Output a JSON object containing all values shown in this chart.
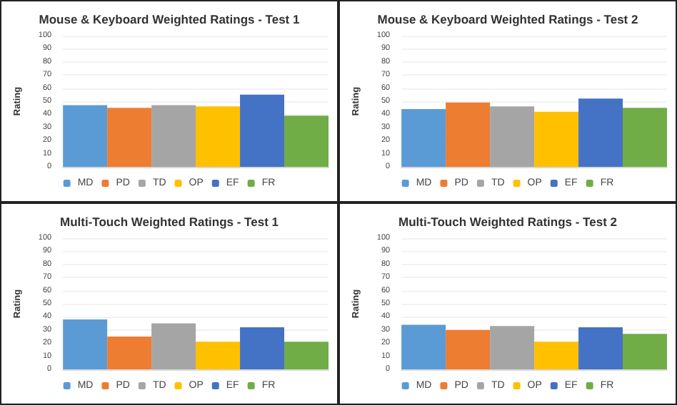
{
  "chart_data": [
    {
      "type": "bar",
      "title": "Mouse & Keyboard Weighted Ratings - Test 1",
      "ylabel": "Rating",
      "categories": [
        null
      ],
      "ylim": [
        0,
        100
      ],
      "yticks": [
        0,
        10,
        20,
        30,
        40,
        50,
        60,
        70,
        80,
        90,
        100
      ],
      "grid": "y",
      "legend": "bottom",
      "series": [
        {
          "name": "MD",
          "color": "#5b9bd5",
          "values": [
            47
          ]
        },
        {
          "name": "PD",
          "color": "#ed7d31",
          "values": [
            45
          ]
        },
        {
          "name": "TD",
          "color": "#a5a5a5",
          "values": [
            47
          ]
        },
        {
          "name": "OP",
          "color": "#ffc000",
          "values": [
            46
          ]
        },
        {
          "name": "EF",
          "color": "#4472c4",
          "values": [
            55
          ]
        },
        {
          "name": "FR",
          "color": "#70ad47",
          "values": [
            39
          ]
        }
      ]
    },
    {
      "type": "bar",
      "title": "Mouse & Keyboard Weighted Ratings - Test 2",
      "ylabel": "Rating",
      "categories": [
        null
      ],
      "ylim": [
        0,
        100
      ],
      "yticks": [
        0,
        10,
        20,
        30,
        40,
        50,
        60,
        70,
        80,
        90,
        100
      ],
      "grid": "y",
      "legend": "bottom",
      "series": [
        {
          "name": "MD",
          "color": "#5b9bd5",
          "values": [
            44
          ]
        },
        {
          "name": "PD",
          "color": "#ed7d31",
          "values": [
            49
          ]
        },
        {
          "name": "TD",
          "color": "#a5a5a5",
          "values": [
            46
          ]
        },
        {
          "name": "OP",
          "color": "#ffc000",
          "values": [
            42
          ]
        },
        {
          "name": "EF",
          "color": "#4472c4",
          "values": [
            52
          ]
        },
        {
          "name": "FR",
          "color": "#70ad47",
          "values": [
            45
          ]
        }
      ]
    },
    {
      "type": "bar",
      "title": "Multi-Touch Weighted Ratings - Test 1",
      "ylabel": "Rating",
      "categories": [
        null
      ],
      "ylim": [
        0,
        100
      ],
      "yticks": [
        0,
        10,
        20,
        30,
        40,
        50,
        60,
        70,
        80,
        90,
        100
      ],
      "grid": "y",
      "legend": "bottom",
      "series": [
        {
          "name": "MD",
          "color": "#5b9bd5",
          "values": [
            38
          ]
        },
        {
          "name": "PD",
          "color": "#ed7d31",
          "values": [
            25
          ]
        },
        {
          "name": "TD",
          "color": "#a5a5a5",
          "values": [
            35
          ]
        },
        {
          "name": "OP",
          "color": "#ffc000",
          "values": [
            21
          ]
        },
        {
          "name": "EF",
          "color": "#4472c4",
          "values": [
            32
          ]
        },
        {
          "name": "FR",
          "color": "#70ad47",
          "values": [
            21
          ]
        }
      ]
    },
    {
      "type": "bar",
      "title": "Multi-Touch Weighted Ratings - Test 2",
      "ylabel": "Rating",
      "categories": [
        null
      ],
      "ylim": [
        0,
        100
      ],
      "yticks": [
        0,
        10,
        20,
        30,
        40,
        50,
        60,
        70,
        80,
        90,
        100
      ],
      "grid": "y",
      "legend": "bottom",
      "series": [
        {
          "name": "MD",
          "color": "#5b9bd5",
          "values": [
            34
          ]
        },
        {
          "name": "PD",
          "color": "#ed7d31",
          "values": [
            30
          ]
        },
        {
          "name": "TD",
          "color": "#a5a5a5",
          "values": [
            33
          ]
        },
        {
          "name": "OP",
          "color": "#ffc000",
          "values": [
            21
          ]
        },
        {
          "name": "EF",
          "color": "#4472c4",
          "values": [
            32
          ]
        },
        {
          "name": "FR",
          "color": "#70ad47",
          "values": [
            27
          ]
        }
      ]
    }
  ]
}
